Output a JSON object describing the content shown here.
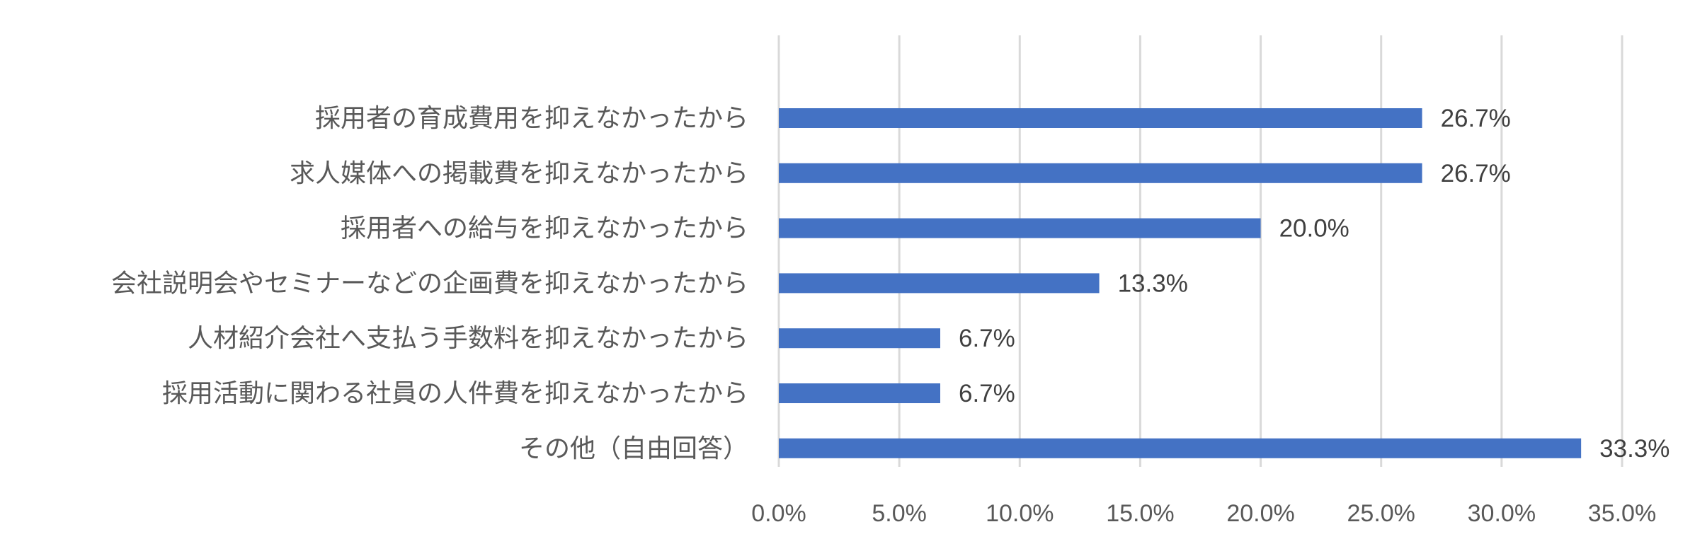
{
  "chart_data": {
    "type": "bar",
    "orientation": "horizontal",
    "categories": [
      "採用者の育成費用を抑えなかったから",
      "求人媒体への掲載費を抑えなかったから",
      "採用者への給与を抑えなかったから",
      "会社説明会やセミナーなどの企画費を抑えなかったから",
      "人材紹介会社へ支払う手数料を抑えなかったから",
      "採用活動に関わる社員の人件費を抑えなかったから",
      "その他（自由回答）"
    ],
    "values": [
      26.7,
      26.7,
      20.0,
      13.3,
      6.7,
      6.7,
      33.3
    ],
    "data_labels": [
      "26.7%",
      "26.7%",
      "20.0%",
      "13.3%",
      "6.7%",
      "6.7%",
      "33.3%"
    ],
    "x_ticks": [
      0,
      5,
      10,
      15,
      20,
      25,
      30,
      35
    ],
    "x_tick_labels": [
      "0.0%",
      "5.0%",
      "10.0%",
      "15.0%",
      "20.0%",
      "25.0%",
      "30.0%",
      "35.0%"
    ],
    "xlim": [
      0,
      35
    ],
    "grid": true,
    "legend": "none",
    "title": "",
    "xlabel": "",
    "ylabel": "",
    "bar_color": "#4472c4"
  }
}
